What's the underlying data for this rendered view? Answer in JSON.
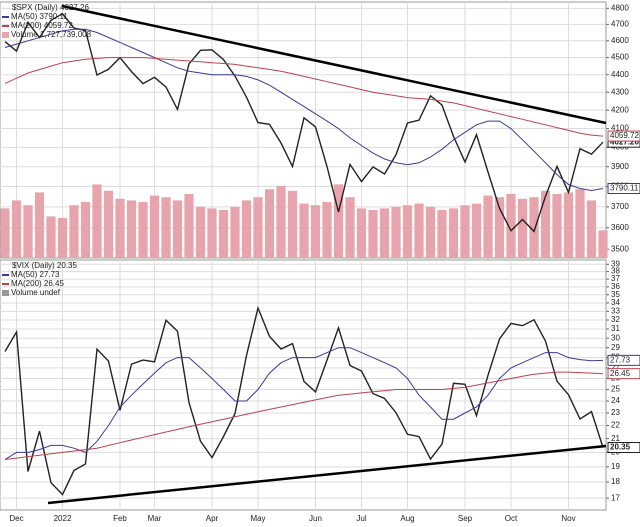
{
  "chart_data": [
    {
      "type": "line",
      "title": "$SPX (Daily) 4027.26",
      "log_scale": true,
      "grid": true,
      "ylim": [
        3460,
        4840
      ],
      "yticks": [
        3500,
        3600,
        3700,
        3800,
        3900,
        4000,
        4100,
        4200,
        4300,
        4400,
        4500,
        4600,
        4700,
        4800
      ],
      "series": [
        {
          "name": "$SPX",
          "color": "#222222",
          "values": [
            4595,
            4538,
            4712,
            4620,
            4725,
            4766,
            4677,
            4662,
            4398,
            4431,
            4500,
            4418,
            4349,
            4385,
            4329,
            4204,
            4463,
            4543,
            4546,
            4488,
            4392,
            4272,
            4132,
            4123,
            4023,
            3901,
            4158,
            4109,
            3901,
            3675,
            3912,
            3825,
            3899,
            3863,
            3962,
            4130,
            4145,
            4280,
            4228,
            4058,
            3924,
            4067,
            3873,
            3693,
            3586,
            3639,
            3583,
            3752,
            3901,
            3771,
            3993,
            3965,
            4027.26
          ]
        },
        {
          "name": "MA(50) 3790.11",
          "color": "#3a3a9a",
          "values": [
            4560,
            4580,
            4600,
            4620,
            4640,
            4660,
            4670,
            4670,
            4650,
            4620,
            4590,
            4560,
            4530,
            4500,
            4470,
            4440,
            4420,
            4410,
            4400,
            4400,
            4400,
            4390,
            4370,
            4340,
            4300,
            4260,
            4220,
            4180,
            4140,
            4100,
            4050,
            4010,
            3970,
            3940,
            3920,
            3910,
            3920,
            3950,
            3990,
            4040,
            4080,
            4120,
            4140,
            4140,
            4100,
            4040,
            3980,
            3920,
            3860,
            3810,
            3790,
            3780,
            3790.11
          ]
        },
        {
          "name": "MA(200) 4059.72",
          "color": "#c04050",
          "values": [
            4350,
            4380,
            4410,
            4430,
            4450,
            4470,
            4480,
            4490,
            4495,
            4500,
            4500,
            4500,
            4500,
            4495,
            4490,
            4485,
            4480,
            4475,
            4470,
            4465,
            4460,
            4450,
            4440,
            4430,
            4420,
            4405,
            4390,
            4375,
            4360,
            4345,
            4330,
            4315,
            4300,
            4290,
            4280,
            4270,
            4265,
            4260,
            4250,
            4240,
            4225,
            4210,
            4195,
            4180,
            4165,
            4150,
            4135,
            4120,
            4105,
            4090,
            4075,
            4065,
            4059.72
          ]
        }
      ],
      "volume": {
        "name": "Volume 1,727,739,008",
        "color": "#e8a4ac",
        "volume_ylim": [
          0,
          16000000000
        ],
        "values": [
          3100000000,
          3600000000,
          3300000000,
          4100000000,
          2600000000,
          2500000000,
          3300000000,
          3500000000,
          4600000000,
          4200000000,
          3700000000,
          3600000000,
          3500000000,
          3900000000,
          3800000000,
          3600000000,
          4000000000,
          3200000000,
          3100000000,
          3000000000,
          3200000000,
          3600000000,
          3800000000,
          4300000000,
          4500000000,
          4200000000,
          3400000000,
          3300000000,
          3500000000,
          4600000000,
          3800000000,
          3100000000,
          3000000000,
          3100000000,
          3200000000,
          3300000000,
          3400000000,
          3200000000,
          3000000000,
          3100000000,
          3300000000,
          3400000000,
          3900000000,
          3800000000,
          4000000000,
          3700000000,
          3800000000,
          4200000000,
          4000000000,
          4100000000,
          4300000000,
          3600000000,
          1727739008
        ]
      }
    },
    {
      "type": "line",
      "title": "$VIX (Daily) 20.35",
      "log_scale": true,
      "grid": true,
      "volume_label": "Volume undef",
      "categories": [
        null,
        "Dec",
        null,
        null,
        null,
        "2022",
        null,
        null,
        null,
        null,
        "Feb",
        null,
        null,
        "Mar",
        null,
        null,
        null,
        null,
        "Apr",
        null,
        null,
        null,
        "May",
        null,
        null,
        null,
        null,
        "Jun",
        null,
        null,
        null,
        "Jul",
        null,
        null,
        null,
        "Aug",
        null,
        null,
        null,
        null,
        "Sep",
        null,
        null,
        null,
        "Oct",
        null,
        null,
        null,
        null,
        "Nov",
        null,
        null,
        null
      ],
      "ylim": [
        16.3,
        39.6
      ],
      "yticks": [
        17,
        18,
        19,
        20,
        21,
        22,
        23,
        24,
        25,
        26,
        27,
        28,
        29,
        30,
        31,
        32,
        33,
        34,
        35,
        36,
        37,
        38,
        39
      ],
      "series": [
        {
          "name": "$VIX",
          "color": "#222222",
          "values": [
            28.62,
            30.67,
            18.69,
            21.57,
            17.96,
            17.22,
            18.76,
            19.19,
            28.85,
            27.66,
            23.22,
            27.36,
            27.75,
            27.59,
            31.98,
            30.75,
            23.87,
            20.81,
            19.63,
            21.16,
            22.95,
            28.21,
            33.4,
            30.19,
            28.87,
            29.43,
            25.72,
            24.79,
            27.75,
            31.13,
            27.23,
            26.7,
            24.64,
            24.23,
            23.03,
            21.33,
            21.15,
            19.53,
            20.6,
            25.56,
            25.47,
            22.79,
            26.3,
            29.92,
            31.62,
            31.36,
            32.02,
            29.69,
            25.75,
            24.55,
            22.52,
            23.12,
            20.35
          ]
        },
        {
          "name": "MA(50) 27.73",
          "color": "#3a3a9a",
          "values": [
            19.5,
            20,
            20,
            20.2,
            20.5,
            20.5,
            20.3,
            20,
            20.8,
            22,
            23.5,
            24.5,
            25.5,
            26.5,
            27.5,
            28,
            28,
            27,
            26,
            25,
            24,
            24,
            25,
            26.5,
            27.5,
            28,
            28,
            28,
            28.5,
            29,
            29,
            28.5,
            28,
            27.5,
            27,
            26,
            24.5,
            23.5,
            22.5,
            22.5,
            23,
            23.5,
            24.5,
            26,
            27,
            27.5,
            28,
            28.5,
            28.5,
            28,
            27.8,
            27.7,
            27.73
          ]
        },
        {
          "name": "MA(200) 26.45",
          "color": "#c04050",
          "values": [
            19.5,
            19.6,
            19.7,
            19.8,
            19.9,
            20,
            20.1,
            20.2,
            20.3,
            20.5,
            20.7,
            20.9,
            21.1,
            21.3,
            21.5,
            21.7,
            21.9,
            22.1,
            22.3,
            22.5,
            22.7,
            22.9,
            23.1,
            23.3,
            23.5,
            23.7,
            23.9,
            24.1,
            24.3,
            24.5,
            24.6,
            24.7,
            24.8,
            24.9,
            25,
            25,
            25,
            25,
            25,
            25.1,
            25.2,
            25.4,
            25.6,
            25.8,
            26,
            26.2,
            26.4,
            26.5,
            26.6,
            26.6,
            26.55,
            26.5,
            26.45
          ]
        }
      ]
    }
  ]
}
